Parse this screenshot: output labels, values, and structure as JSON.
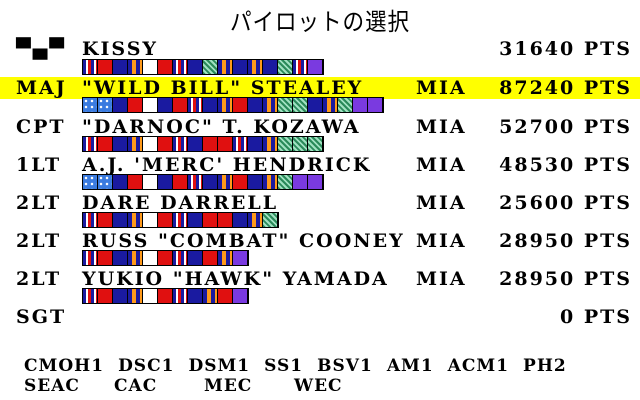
{
  "title": "パイロットの選択",
  "rows": [
    {
      "rank": "▀▄▀",
      "name": "KISSY",
      "status": "",
      "points": "31640 PTS",
      "selected": false,
      "ribbons": [
        "pattern-stripe",
        "#e01010",
        "#1a1aa0",
        "pattern-orange",
        "#ffffff",
        "#e01010",
        "pattern-stripe",
        "#1a1aa0",
        "pattern-check",
        "pattern-orange",
        "#1a1aa0",
        "pattern-orange",
        "#1a1aa0",
        "pattern-check",
        "pattern-stripe",
        "#7a3ae0"
      ]
    },
    {
      "rank": "MAJ",
      "name": "\"WILD BILL\" STEALEY",
      "status": "MIA",
      "points": "87240 PTS",
      "selected": true,
      "ribbons": [
        "pattern-stars",
        "pattern-stars",
        "#1a1aa0",
        "#e01010",
        "#ffffff",
        "#1a1aa0",
        "#e01010",
        "pattern-stripe",
        "#1a1aa0",
        "pattern-orange",
        "#e01010",
        "#1a1aa0",
        "pattern-orange",
        "pattern-check",
        "pattern-check",
        "#1a1aa0",
        "pattern-orange",
        "pattern-check",
        "#7a3ae0",
        "#7a3ae0"
      ]
    },
    {
      "rank": "CPT",
      "name": "\"DARNOC\" T. KOZAWA",
      "status": "MIA",
      "points": "52700 PTS",
      "selected": false,
      "ribbons": [
        "pattern-stripe",
        "#e01010",
        "#1a1aa0",
        "pattern-orange",
        "#ffffff",
        "#e01010",
        "pattern-stripe",
        "#1a1aa0",
        "#e01010",
        "#e01010",
        "pattern-stripe",
        "#1a1aa0",
        "pattern-orange",
        "pattern-check",
        "pattern-check",
        "pattern-check"
      ]
    },
    {
      "rank": "1LT",
      "name": "A.J. 'MERC' HENDRICK",
      "status": "MIA",
      "points": "48530 PTS",
      "selected": false,
      "ribbons": [
        "pattern-stars",
        "pattern-stars",
        "#1a1aa0",
        "#e01010",
        "#ffffff",
        "#1a1aa0",
        "#e01010",
        "pattern-stripe",
        "#1a1aa0",
        "pattern-orange",
        "#e01010",
        "#1a1aa0",
        "pattern-orange",
        "pattern-check",
        "#7a3ae0",
        "#7a3ae0"
      ]
    },
    {
      "rank": "2LT",
      "name": "DARE DARRELL",
      "status": "MIA",
      "points": "25600 PTS",
      "selected": false,
      "ribbons": [
        "pattern-stripe",
        "#e01010",
        "#1a1aa0",
        "pattern-orange",
        "#ffffff",
        "#e01010",
        "pattern-stripe",
        "#1a1aa0",
        "#e01010",
        "#e01010",
        "#1a1aa0",
        "pattern-orange",
        "pattern-check"
      ]
    },
    {
      "rank": "2LT",
      "name": "RUSS \"COMBAT\" COONEY",
      "status": "MIA",
      "points": "28950 PTS",
      "selected": false,
      "ribbons": [
        "pattern-stripe",
        "#e01010",
        "#1a1aa0",
        "pattern-orange",
        "#ffffff",
        "#e01010",
        "pattern-stripe",
        "#1a1aa0",
        "#e01010",
        "pattern-orange",
        "#7a3ae0"
      ]
    },
    {
      "rank": "2LT",
      "name": "YUKIO \"HAWK\" YAMADA",
      "status": "MIA",
      "points": "28950 PTS",
      "selected": false,
      "ribbons": [
        "pattern-stripe",
        "#e01010",
        "#1a1aa0",
        "pattern-orange",
        "#ffffff",
        "#e01010",
        "pattern-stripe",
        "#1a1aa0",
        "pattern-orange",
        "#e01010",
        "#7a3ae0"
      ]
    },
    {
      "rank": "SGT",
      "name": "",
      "status": "",
      "points": "0 PTS",
      "selected": false,
      "ribbons": []
    }
  ],
  "medals_line1": [
    "CMOH1",
    "DSC1",
    "DSM1",
    "SS1",
    "BSV1",
    "AM1",
    "ACM1",
    "PH2"
  ],
  "medals_line2": [
    "SEAC",
    "CAC",
    "MEC",
    "WEC"
  ]
}
